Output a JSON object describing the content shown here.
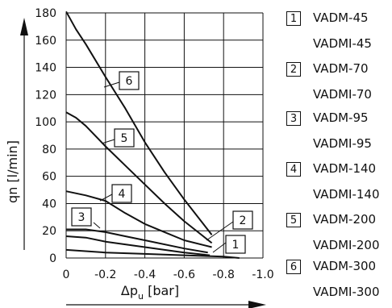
{
  "chart_data": {
    "type": "line",
    "xlabel_main": "Δp",
    "xlabel_sub": "u",
    "xlabel_unit": " [bar]",
    "ylabel": "qn [l/min]",
    "xlim": [
      0,
      -1.0
    ],
    "ylim": [
      0,
      180
    ],
    "x_ticks": [
      0,
      -0.2,
      -0.4,
      -0.6,
      -0.8,
      -1.0
    ],
    "x_tick_labels": [
      "0",
      "-0.2",
      "-0.4",
      "-0.6",
      "-0.8",
      "-1.0"
    ],
    "y_ticks": [
      0,
      20,
      40,
      60,
      80,
      100,
      120,
      140,
      160,
      180
    ],
    "y_tick_labels": [
      "0",
      "20",
      "40",
      "60",
      "80",
      "100",
      "120",
      "140",
      "160",
      "180"
    ],
    "grid": true,
    "series": [
      {
        "name": "1",
        "x": [
          0,
          -0.2,
          -0.4,
          -0.6,
          -0.8,
          -0.88
        ],
        "y": [
          6,
          4,
          3,
          2,
          1,
          0
        ]
      },
      {
        "name": "2",
        "x": [
          0,
          -0.1,
          -0.2,
          -0.4,
          -0.6,
          -0.73
        ],
        "y": [
          16,
          15,
          12,
          8,
          4,
          2
        ]
      },
      {
        "name": "3",
        "x": [
          0,
          -0.1,
          -0.2,
          -0.3,
          -0.4,
          -0.6,
          -0.72
        ],
        "y": [
          21,
          21,
          19,
          16,
          13,
          7,
          4
        ]
      },
      {
        "name": "4",
        "x": [
          0,
          -0.1,
          -0.2,
          -0.3,
          -0.4,
          -0.5,
          -0.6,
          -0.74
        ],
        "y": [
          49,
          46,
          42,
          33,
          25,
          19,
          13,
          8
        ]
      },
      {
        "name": "5",
        "x": [
          0,
          -0.05,
          -0.1,
          -0.2,
          -0.3,
          -0.4,
          -0.5,
          -0.6,
          -0.74
        ],
        "y": [
          107,
          103,
          97,
          82,
          68,
          54,
          40,
          27,
          11
        ]
      },
      {
        "name": "6",
        "x": [
          0,
          -0.05,
          -0.1,
          -0.2,
          -0.3,
          -0.4,
          -0.5,
          -0.6,
          -0.74
        ],
        "y": [
          181,
          168,
          157,
          133,
          110,
          85,
          63,
          43,
          17
        ]
      }
    ]
  },
  "legend": [
    {
      "num": "1",
      "line1": "VADM-45",
      "line2": "VADMI-45"
    },
    {
      "num": "2",
      "line1": "VADM-70",
      "line2": "VADMI-70"
    },
    {
      "num": "3",
      "line1": "VADM-95",
      "line2": "VADMI-95"
    },
    {
      "num": "4",
      "line1": "VADM-140",
      "line2": "VADMI-140"
    },
    {
      "num": "5",
      "line1": "VADM-200",
      "line2": "VADMI-200"
    },
    {
      "num": "6",
      "line1": "VADM-300",
      "line2": "VADMI-300"
    }
  ]
}
